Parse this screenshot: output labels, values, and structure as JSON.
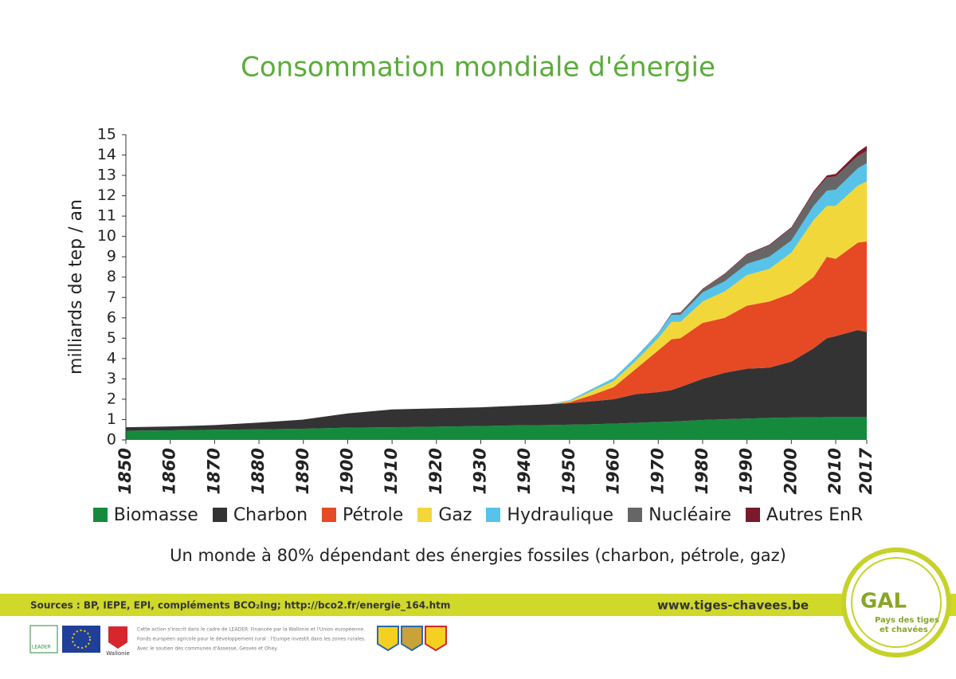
{
  "chart_data": {
    "type": "stacked-area",
    "title": "Consommation mondiale d'énergie",
    "subtitle": "Un monde à 80% dépendant des énergies fossiles (charbon, pétrole, gaz)",
    "ylabel": "milliards de tep / an",
    "x": [
      1850,
      1860,
      1870,
      1880,
      1890,
      1900,
      1910,
      1920,
      1930,
      1940,
      1945,
      1950,
      1955,
      1960,
      1965,
      1970,
      1973,
      1975,
      1980,
      1985,
      1990,
      1995,
      2000,
      2005,
      2008,
      2010,
      2015,
      2017
    ],
    "xlim": [
      1850,
      2017
    ],
    "xticks": [
      1850,
      1860,
      1870,
      1880,
      1890,
      1900,
      1910,
      1920,
      1930,
      1940,
      1950,
      1960,
      1970,
      1980,
      1990,
      2000,
      2010,
      2017
    ],
    "ylim": [
      0,
      15
    ],
    "yticks": [
      0,
      1,
      2,
      3,
      4,
      5,
      6,
      7,
      8,
      9,
      10,
      11,
      12,
      13,
      14,
      15
    ],
    "series": [
      {
        "name": "Biomasse",
        "color": "#168a3c",
        "values": [
          0.45,
          0.47,
          0.5,
          0.52,
          0.55,
          0.6,
          0.62,
          0.65,
          0.68,
          0.72,
          0.73,
          0.75,
          0.77,
          0.8,
          0.84,
          0.88,
          0.9,
          0.92,
          0.98,
          1.02,
          1.05,
          1.08,
          1.1,
          1.11,
          1.12,
          1.12,
          1.12,
          1.12
        ]
      },
      {
        "name": "Charbon",
        "color": "#333333",
        "values": [
          0.17,
          0.19,
          0.23,
          0.33,
          0.45,
          0.7,
          0.88,
          0.9,
          0.92,
          0.98,
          1.02,
          1.05,
          1.13,
          1.2,
          1.41,
          1.47,
          1.55,
          1.68,
          2.02,
          2.28,
          2.45,
          2.47,
          2.75,
          3.39,
          3.88,
          3.98,
          4.28,
          4.18
        ]
      },
      {
        "name": "Pétrole",
        "color": "#e64a25",
        "values": [
          0,
          0,
          0,
          0,
          0,
          0,
          0,
          0,
          0,
          0,
          0,
          0.05,
          0.3,
          0.6,
          1.25,
          2.05,
          2.5,
          2.4,
          2.75,
          2.7,
          3.1,
          3.25,
          3.35,
          3.5,
          4.0,
          3.8,
          4.3,
          4.45
        ]
      },
      {
        "name": "Gaz",
        "color": "#f2d73a",
        "values": [
          0,
          0,
          0,
          0,
          0,
          0,
          0,
          0,
          0,
          0,
          0,
          0.05,
          0.2,
          0.3,
          0.4,
          0.6,
          0.85,
          0.8,
          1.05,
          1.3,
          1.5,
          1.6,
          2.0,
          2.8,
          2.5,
          2.6,
          2.8,
          2.95
        ]
      },
      {
        "name": "Hydraulique",
        "color": "#57c3e8",
        "values": [
          0,
          0,
          0,
          0,
          0,
          0,
          0,
          0,
          0,
          0,
          0,
          0.05,
          0.1,
          0.15,
          0.2,
          0.25,
          0.35,
          0.35,
          0.45,
          0.5,
          0.55,
          0.6,
          0.6,
          0.7,
          0.75,
          0.8,
          0.85,
          0.9
        ]
      },
      {
        "name": "Nucléaire",
        "color": "#666666",
        "values": [
          0,
          0,
          0,
          0,
          0,
          0,
          0,
          0,
          0,
          0,
          0,
          0,
          0,
          0,
          0,
          0.02,
          0.05,
          0.1,
          0.15,
          0.35,
          0.45,
          0.55,
          0.6,
          0.65,
          0.65,
          0.65,
          0.6,
          0.6
        ]
      },
      {
        "name": "Autres EnR",
        "color": "#7a1a2c",
        "values": [
          0,
          0,
          0,
          0,
          0,
          0,
          0,
          0,
          0,
          0,
          0,
          0,
          0,
          0,
          0,
          0,
          0.02,
          0.02,
          0.03,
          0.03,
          0.04,
          0.04,
          0.05,
          0.07,
          0.1,
          0.12,
          0.2,
          0.25
        ]
      }
    ]
  },
  "footer": {
    "sources": "Sources : BP, IEPE, EPI, compléments BCO₂Ing; http://bco2.fr/energie_164.htm",
    "website": "www.tiges-chavees.be",
    "note": [
      "Cette action s'inscrit dans le cadre de LEADER. Financée par la Wallonie et l'Union européenne.",
      "Fonds européen agricole pour le développement rural : l'Europe investit dans les zones rurales.",
      "Avec le soutien des communes d'Assesse, Gesves et Ohey."
    ],
    "logo_gal": "GAL",
    "logo_text": [
      "Pays des tiges",
      "et chavées"
    ],
    "leader": "LEADER",
    "wallonie": "Wallonie"
  }
}
